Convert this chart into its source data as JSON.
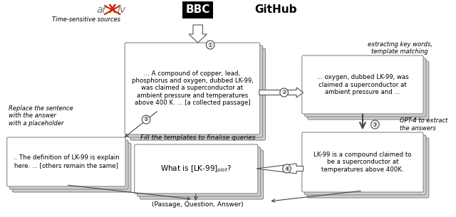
{
  "fig_width": 6.4,
  "fig_height": 3.05,
  "bg_color": "#ffffff",
  "passage_text": "... A compound of copper, lead,\nphosphorus and oxygen, dubbed LK-99,\nwas claimed a superconductor at\nambient pressure and temperatures\nabove 400 K. ... [a collected passage]",
  "extract_text": "... oxygen, dubbed LK-99, was\nclaimed a superconductor at\nambient pressure and ...",
  "answer_text": "LK-99 is a compound claimed to\nbe a superconductor at\ntemperatures above 400K.",
  "question_text": "What is [LK-99]ₛₗₒₜ?",
  "passage2_text": ".. The definition of LK-99 is explain\nhere. ... [others remain the same]",
  "extract_label": "extracting key words,\ntemplate matching",
  "gpt4_label": "GPT-4 to extract\nthe answers",
  "fill_label": "Fill the templates to finalise queries",
  "replace_label": "Replace the sentence\nwith the answer\nwith a placeholder",
  "output_label": "(Passage, Question, Answer)",
  "time_label": "Time-sensitive sources"
}
